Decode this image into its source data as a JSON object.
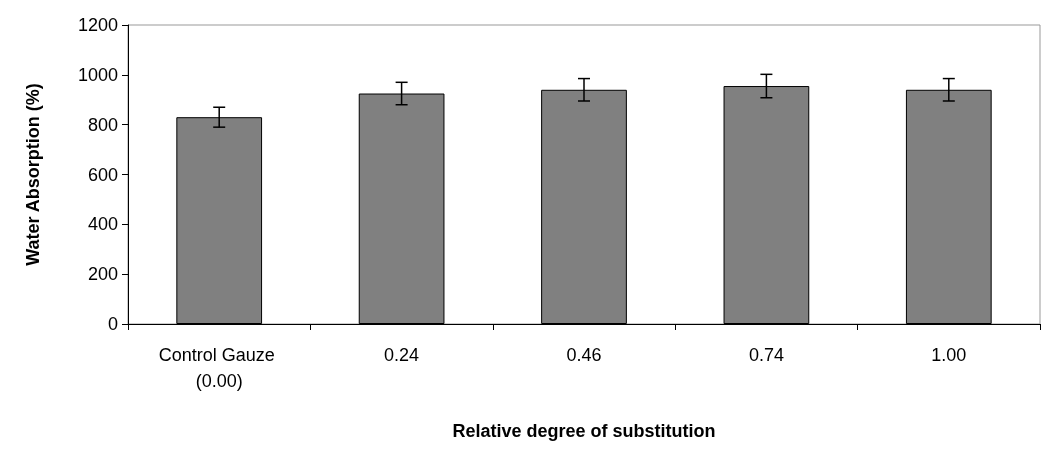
{
  "chart_data": {
    "type": "bar",
    "xlabel": "Relative degree of substitution",
    "ylabel": "Water Absorption (%)",
    "categories": [
      "Control Gauze (0.00)",
      "0.24",
      "0.46",
      "0.74",
      "1.00"
    ],
    "values": [
      830,
      925,
      940,
      955,
      940
    ],
    "errors": [
      40,
      45,
      45,
      47,
      45
    ],
    "color": "#808080",
    "ylim": [
      0,
      1200
    ],
    "yticks": [
      0,
      200,
      400,
      600,
      800,
      1000,
      1200
    ],
    "grid": false
  }
}
